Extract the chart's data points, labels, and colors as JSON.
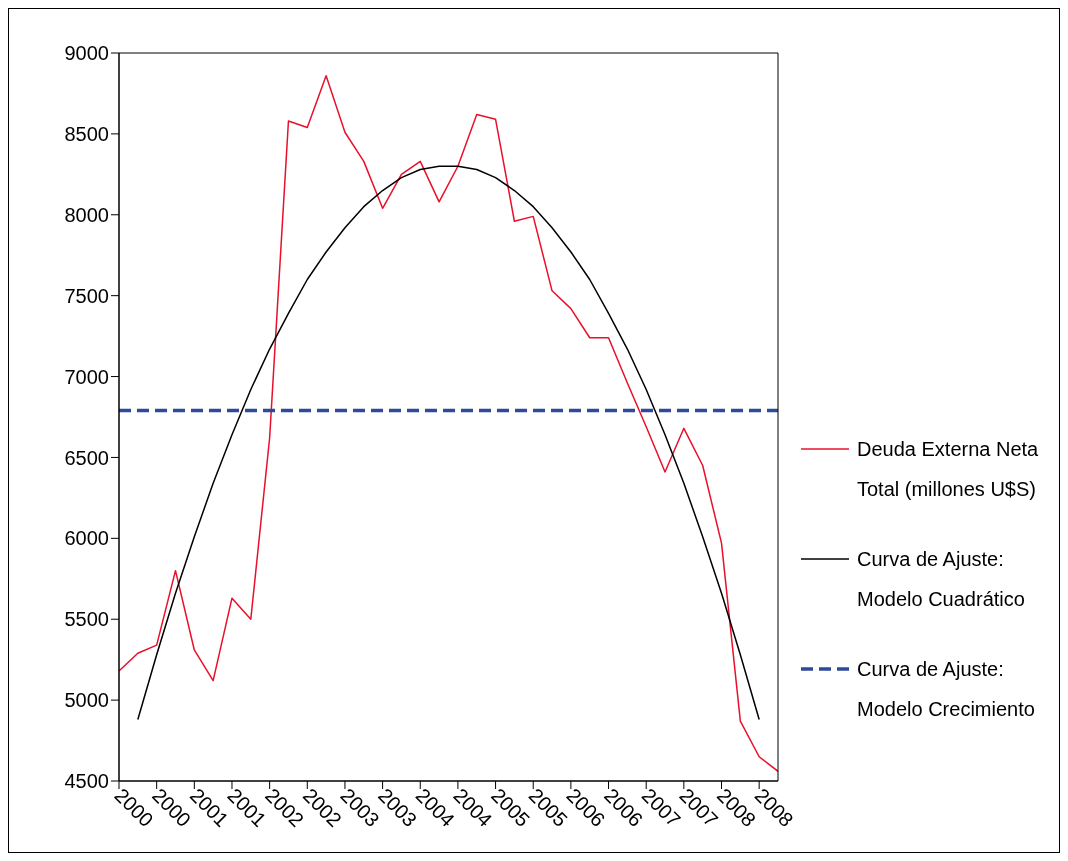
{
  "chart_data": {
    "type": "line",
    "categories": [
      "2000",
      null,
      "2000",
      null,
      "2001",
      null,
      "2001",
      null,
      "2002",
      null,
      "2002",
      null,
      "2003",
      null,
      "2003",
      null,
      "2004",
      null,
      "2004",
      null,
      "2005",
      null,
      "2005",
      null,
      "2006",
      null,
      "2006",
      null,
      "2007",
      null,
      "2007",
      null,
      "2008",
      null,
      "2008",
      null
    ],
    "series": [
      {
        "name": "Deuda Externa Neta Total (millones U$S)",
        "color": "#e8102a",
        "values": [
          5180,
          5290,
          5340,
          5800,
          5310,
          5120,
          5630,
          5500,
          6620,
          8580,
          8540,
          8860,
          8510,
          8330,
          8040,
          8250,
          8330,
          8080,
          8300,
          8620,
          8590,
          7960,
          7990,
          7530,
          7420,
          7240,
          7240,
          6960,
          6690,
          6410,
          6680,
          6450,
          5970,
          4870,
          4650,
          4560
        ]
      },
      {
        "name": "Curva de Ajuste: Modelo Cuadrático",
        "color": "#000000",
        "values": [
          null,
          4880,
          5280,
          5660,
          6010,
          6340,
          6640,
          6920,
          7170,
          7390,
          7600,
          7770,
          7920,
          8050,
          8150,
          8230,
          8280,
          8300,
          8300,
          8280,
          8230,
          8150,
          8050,
          7920,
          7770,
          7600,
          7390,
          7170,
          6920,
          6640,
          6340,
          6010,
          5660,
          5280,
          4880,
          null
        ]
      },
      {
        "name": "Curva de Ajuste: Modelo Crecimiento",
        "color": "#2e4a9a",
        "line_style": "dashed",
        "values": [
          6790,
          6790,
          6790,
          6790,
          6790,
          6790,
          6790,
          6790,
          6790,
          6790,
          6790,
          6790,
          6790,
          6790,
          6790,
          6790,
          6790,
          6790,
          6790,
          6790,
          6790,
          6790,
          6790,
          6790,
          6790,
          6790,
          6790,
          6790,
          6790,
          6790,
          6790,
          6790,
          6790,
          6790,
          6790,
          6790
        ]
      }
    ],
    "ylim": [
      4500,
      9000
    ],
    "yticks": [
      4500,
      5000,
      5500,
      6000,
      6500,
      7000,
      7500,
      8000,
      8500,
      9000
    ],
    "legend": "right",
    "grid": false,
    "marker": "none"
  }
}
